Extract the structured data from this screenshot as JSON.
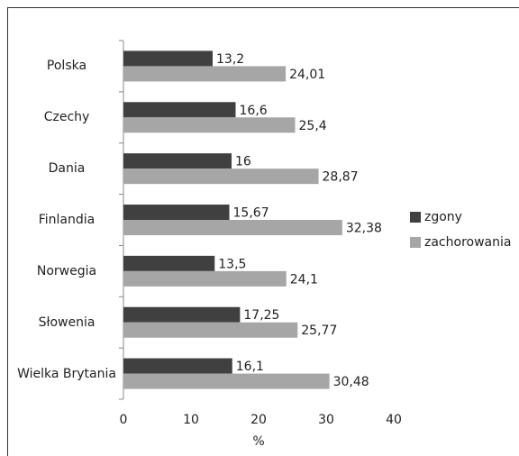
{
  "chart_data": {
    "type": "hbar",
    "categories": [
      "Polska",
      "Czechy",
      "Dania",
      "Finlandia",
      "Norwegia",
      "Słowenia",
      "Wielka Brytania"
    ],
    "series": [
      {
        "name": "zgony",
        "color": "#404040",
        "values": [
          13.2,
          16.6,
          16,
          15.67,
          13.5,
          17.25,
          16.1
        ],
        "value_labels": [
          "13,2",
          "16,6",
          "16",
          "15,67",
          "13,5",
          "17,25",
          "16,1"
        ]
      },
      {
        "name": "zachorowania",
        "color": "#a6a6a6",
        "values": [
          24.01,
          25.4,
          28.87,
          32.38,
          24.1,
          25.77,
          30.48
        ],
        "value_labels": [
          "24,01",
          "25,4",
          "28,87",
          "32,38",
          "24,1",
          "25,77",
          "30,48"
        ]
      }
    ],
    "xlabel": "%",
    "xlim": [
      0,
      40
    ],
    "xticks": [
      0,
      10,
      20,
      30,
      40
    ],
    "legend": "right"
  }
}
